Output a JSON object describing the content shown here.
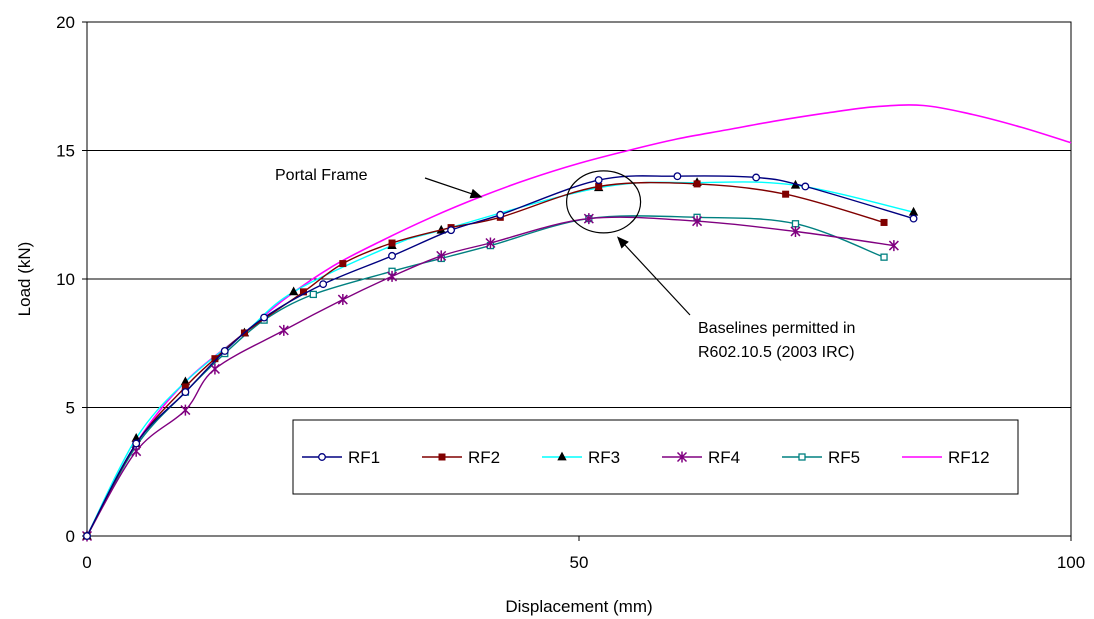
{
  "chart_data": {
    "type": "line",
    "title": "",
    "xlabel": "Displacement (mm)",
    "ylabel": "Load (kN)",
    "xlim": [
      0,
      100
    ],
    "ylim": [
      0,
      20
    ],
    "x_ticks": [
      "0",
      "50",
      "100"
    ],
    "y_ticks": [
      "0",
      "5",
      "10",
      "15",
      "20"
    ],
    "grid": "horizontal",
    "legend_position": "bottom-center",
    "annotations": [
      {
        "text": "Portal Frame",
        "arrow_target": [
          40,
          13.2
        ]
      },
      {
        "text_lines": [
          "Baselines permitted in",
          "R602.10.5 (2003 IRC)"
        ],
        "arrow_target": [
          54,
          11.6
        ],
        "ellipse_center": [
          52.5,
          13.0
        ]
      }
    ],
    "series": [
      {
        "name": "RF1",
        "color": "#000080",
        "marker": "circle-open",
        "x": [
          0,
          5,
          10,
          14,
          18,
          24,
          31,
          37,
          42,
          52,
          60,
          68,
          73,
          84
        ],
        "y": [
          0,
          3.6,
          5.6,
          7.2,
          8.5,
          9.8,
          10.9,
          11.9,
          12.5,
          13.85,
          14.0,
          13.95,
          13.6,
          12.35
        ]
      },
      {
        "name": "RF2",
        "color": "#800000",
        "marker": "square-filled",
        "x": [
          0,
          5,
          10,
          13,
          16,
          22,
          26,
          31,
          37,
          42,
          52,
          62,
          71,
          81
        ],
        "y": [
          0,
          3.6,
          5.8,
          6.9,
          7.9,
          9.5,
          10.6,
          11.4,
          12.0,
          12.4,
          13.6,
          13.7,
          13.3,
          12.2
        ]
      },
      {
        "name": "RF3",
        "color": "#00FFFF",
        "marker": "triangle-filled",
        "x": [
          0,
          5,
          10,
          16,
          21,
          31,
          36,
          52,
          62,
          72,
          84
        ],
        "y": [
          0,
          3.8,
          6.0,
          7.9,
          9.5,
          11.3,
          11.9,
          13.55,
          13.75,
          13.65,
          12.6
        ]
      },
      {
        "name": "RF4",
        "color": "#800080",
        "marker": "star",
        "x": [
          0,
          5,
          10,
          13,
          20,
          26,
          31,
          36,
          41,
          51,
          62,
          72,
          82
        ],
        "y": [
          0,
          3.3,
          4.9,
          6.5,
          8.0,
          9.2,
          10.1,
          10.9,
          11.4,
          12.35,
          12.25,
          11.85,
          11.3
        ]
      },
      {
        "name": "RF5",
        "color": "#008080",
        "marker": "square-open",
        "x": [
          0,
          5,
          10,
          14,
          18,
          23,
          31,
          36,
          41,
          51,
          62,
          72,
          81
        ],
        "y": [
          0,
          3.5,
          5.6,
          7.1,
          8.4,
          9.4,
          10.3,
          10.8,
          11.3,
          12.35,
          12.4,
          12.15,
          10.85
        ]
      },
      {
        "name": "RF12",
        "color": "#FF00FF",
        "marker": "none",
        "x": [
          0,
          5,
          10,
          16,
          20,
          25,
          30,
          35,
          40,
          45,
          50,
          55,
          60,
          65,
          70,
          75,
          80,
          85,
          90,
          95,
          100
        ],
        "y": [
          0,
          3.6,
          6.0,
          7.9,
          9.2,
          10.5,
          11.5,
          12.4,
          13.2,
          13.9,
          14.5,
          15.0,
          15.45,
          15.8,
          16.15,
          16.45,
          16.7,
          16.75,
          16.4,
          15.9,
          15.3
        ]
      }
    ]
  }
}
